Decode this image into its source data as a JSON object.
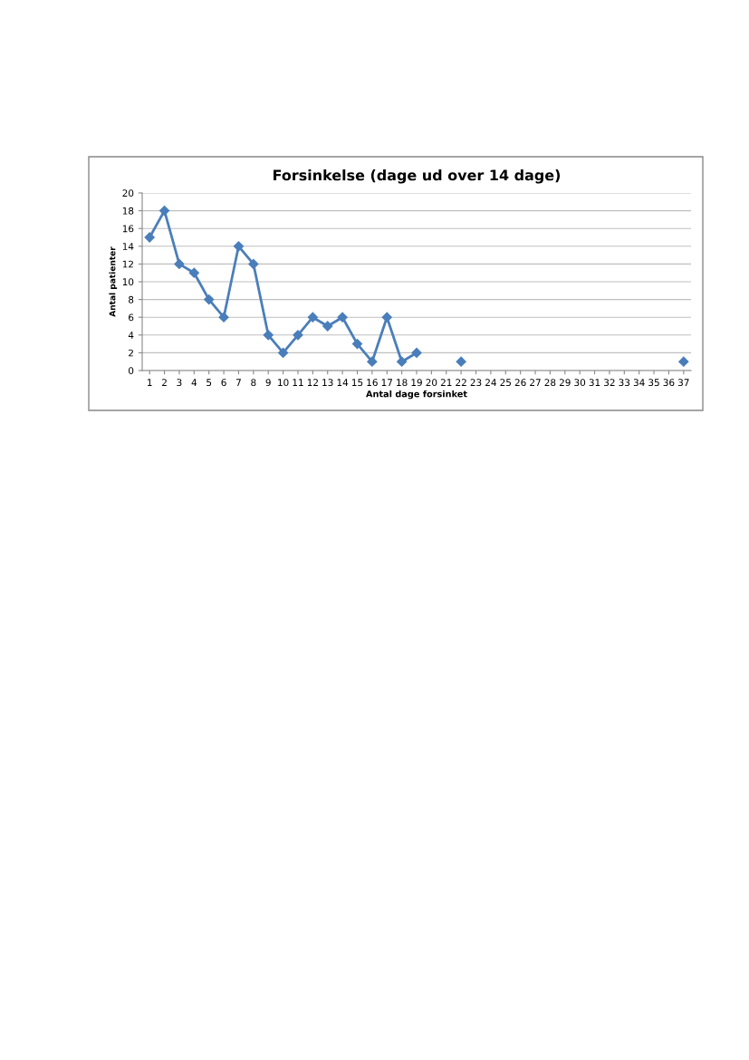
{
  "chart_data": {
    "type": "line",
    "title": "Forsinkelse (dage ud over 14 dage)",
    "xlabel": "Antal dage forsinket",
    "ylabel": "Antal patienter",
    "categories": [
      "1",
      "2",
      "3",
      "4",
      "5",
      "6",
      "7",
      "8",
      "9",
      "10",
      "11",
      "12",
      "13",
      "14",
      "15",
      "16",
      "17",
      "18",
      "19",
      "20",
      "21",
      "22",
      "23",
      "24",
      "25",
      "26",
      "27",
      "28",
      "29",
      "30",
      "31",
      "32",
      "33",
      "34",
      "35",
      "36",
      "37"
    ],
    "series": [
      {
        "color": "#4a7ebb",
        "values": [
          15,
          18,
          12,
          11,
          8,
          6,
          14,
          12,
          4,
          2,
          4,
          6,
          5,
          6,
          3,
          1,
          6,
          1,
          2,
          null,
          null,
          1,
          null,
          null,
          null,
          null,
          null,
          null,
          null,
          null,
          null,
          null,
          null,
          null,
          null,
          null,
          1
        ]
      }
    ],
    "ylim": [
      0,
      20
    ],
    "yticks": [
      0,
      2,
      4,
      6,
      8,
      10,
      12,
      14,
      16,
      18,
      20
    ],
    "grid": "y",
    "marker": "diamond",
    "line_style": "solid",
    "legend": false
  }
}
